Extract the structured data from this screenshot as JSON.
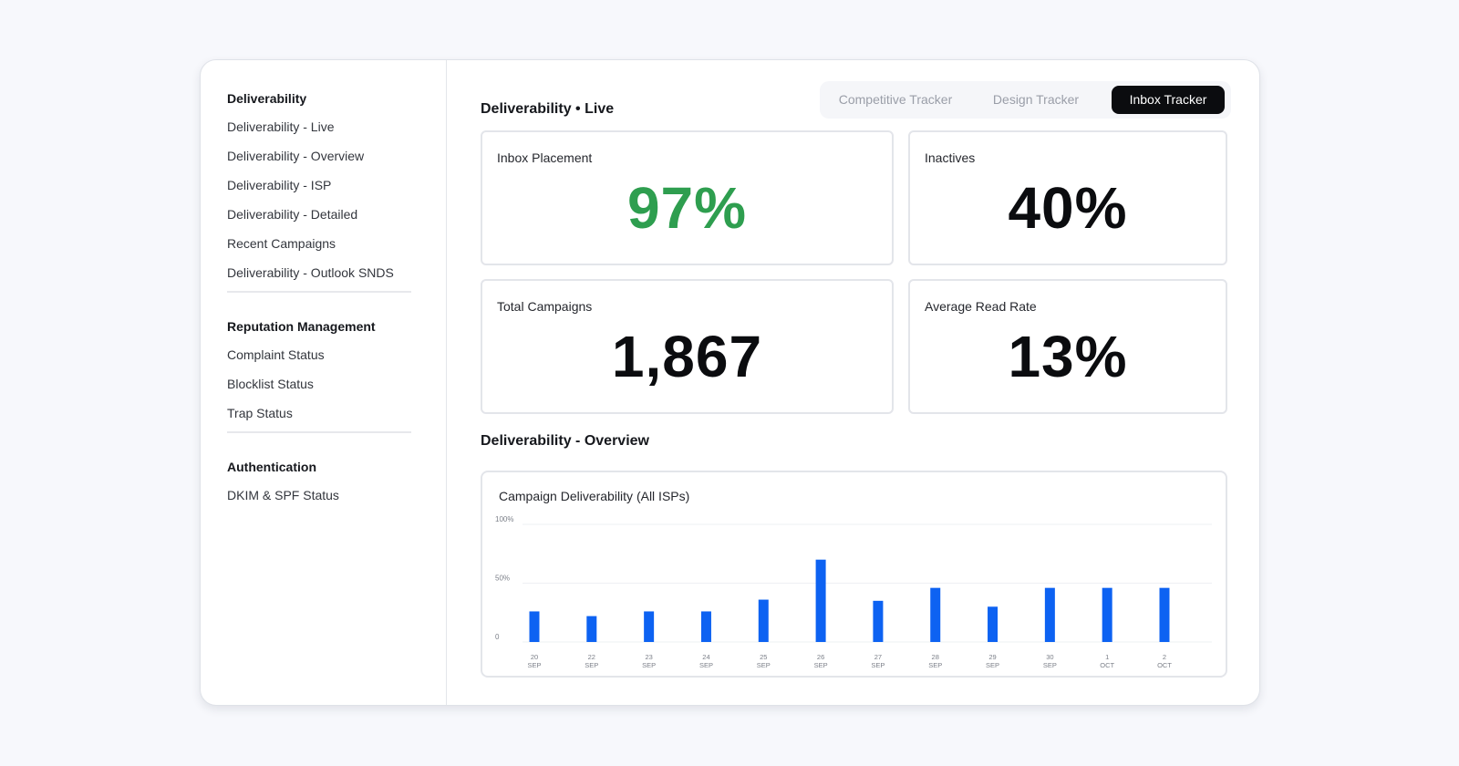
{
  "sidebar": {
    "sections": [
      {
        "heading": "Deliverability",
        "items": [
          "Deliverability - Live",
          "Deliverability - Overview",
          "Deliverability - ISP",
          "Deliverability - Detailed",
          "Recent Campaigns",
          "Deliverability - Outlook SNDS"
        ]
      },
      {
        "heading": "Reputation Management",
        "items": [
          "Complaint Status",
          "Blocklist Status",
          "Trap Status"
        ]
      },
      {
        "heading": "Authentication",
        "items": [
          "DKIM & SPF Status"
        ]
      }
    ]
  },
  "tabs": [
    {
      "label": "Competitive Tracker",
      "active": false
    },
    {
      "label": "Design Tracker",
      "active": false
    },
    {
      "label": "Inbox Tracker",
      "active": true
    }
  ],
  "live": {
    "title": "Deliverability • Live",
    "cards": [
      {
        "label": "Inbox Placement",
        "value": "97%",
        "status": "good"
      },
      {
        "label": "Inactives",
        "value": "40%",
        "status": "neutral"
      },
      {
        "label": "Total Campaigns",
        "value": "1,867",
        "status": "neutral"
      },
      {
        "label": "Average Read Rate",
        "value": "13%",
        "status": "neutral"
      }
    ]
  },
  "overview": {
    "title": "Deliverability - Overview"
  },
  "colors": {
    "good": "#2e9e4f",
    "bar": "#0d62f2",
    "tab_active": "#0b0c0f"
  },
  "chart_data": {
    "type": "bar",
    "title": "Campaign Deliverability (All ISPs)",
    "categories": [
      {
        "day": "20",
        "month": "SEP"
      },
      {
        "day": "22",
        "month": "SEP"
      },
      {
        "day": "23",
        "month": "SEP"
      },
      {
        "day": "24",
        "month": "SEP"
      },
      {
        "day": "25",
        "month": "SEP"
      },
      {
        "day": "26",
        "month": "SEP"
      },
      {
        "day": "27",
        "month": "SEP"
      },
      {
        "day": "28",
        "month": "SEP"
      },
      {
        "day": "29",
        "month": "SEP"
      },
      {
        "day": "30",
        "month": "SEP"
      },
      {
        "day": "1",
        "month": "OCT"
      },
      {
        "day": "2",
        "month": "OCT"
      }
    ],
    "values": [
      26,
      22,
      26,
      26,
      36,
      70,
      35,
      46,
      30,
      46,
      46,
      46
    ],
    "y_ticks": [
      {
        "value": 0,
        "label": "0"
      },
      {
        "value": 50,
        "label": "50%"
      },
      {
        "value": 100,
        "label": "100%"
      }
    ],
    "ylim": [
      0,
      100
    ],
    "grid": true,
    "legend": "none"
  }
}
